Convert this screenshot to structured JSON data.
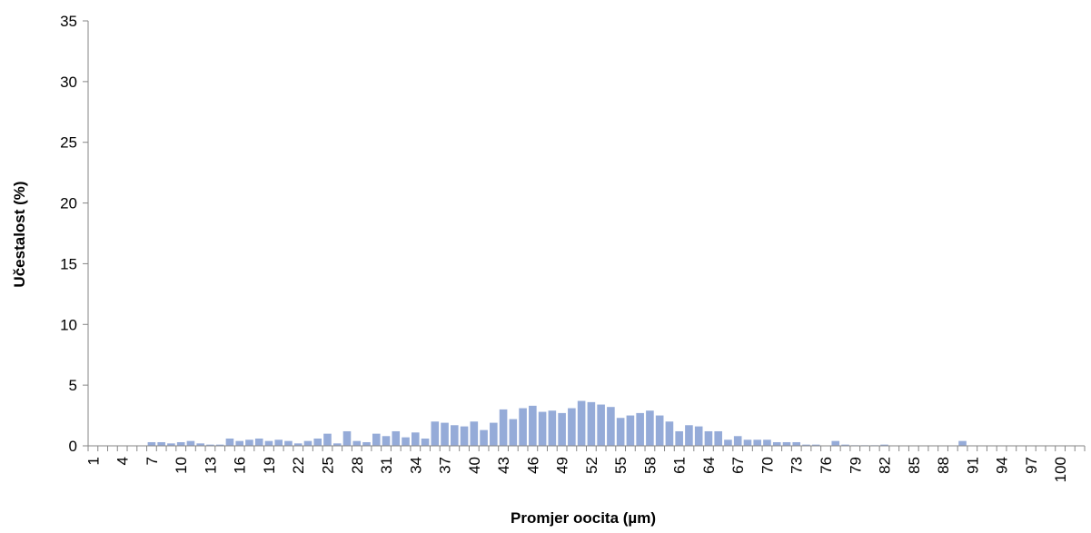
{
  "chart_data": {
    "type": "bar",
    "title": "",
    "xlabel": "Promjer oocita (µm)",
    "ylabel": "Učestalost (%)",
    "ylim": [
      0,
      35
    ],
    "yticks": [
      0,
      5,
      10,
      15,
      20,
      25,
      30,
      35
    ],
    "x_tick_labels": [
      "1",
      "4",
      "7",
      "10",
      "13",
      "16",
      "19",
      "22",
      "25",
      "28",
      "31",
      "34",
      "37",
      "40",
      "43",
      "46",
      "49",
      "52",
      "55",
      "58",
      "61",
      "64",
      "67",
      "70",
      "73",
      "76",
      "79",
      "82",
      "85",
      "88",
      "91",
      "94",
      "97",
      "100"
    ],
    "categories": [
      1,
      2,
      3,
      4,
      5,
      6,
      7,
      8,
      9,
      10,
      11,
      12,
      13,
      14,
      15,
      16,
      17,
      18,
      19,
      20,
      21,
      22,
      23,
      24,
      25,
      26,
      27,
      28,
      29,
      30,
      31,
      32,
      33,
      34,
      35,
      36,
      37,
      38,
      39,
      40,
      41,
      42,
      43,
      44,
      45,
      46,
      47,
      48,
      49,
      50,
      51,
      52,
      53,
      54,
      55,
      56,
      57,
      58,
      59,
      60,
      61,
      62,
      63,
      64,
      65,
      66,
      67,
      68,
      69,
      70,
      71,
      72,
      73,
      74,
      75,
      76,
      77,
      78,
      79,
      80,
      81,
      82,
      83,
      84,
      85,
      86,
      87,
      88,
      89,
      90,
      91,
      92,
      93,
      94,
      95,
      96,
      97,
      98,
      99,
      100,
      101,
      102
    ],
    "values": [
      0,
      0,
      0,
      0,
      0,
      0,
      0.3,
      0.3,
      0.2,
      0.3,
      0.4,
      0.2,
      0.1,
      0.1,
      0.6,
      0.4,
      0.5,
      0.6,
      0.4,
      0.5,
      0.4,
      0.2,
      0.4,
      0.6,
      1.0,
      0.2,
      1.2,
      0.4,
      0.3,
      1.0,
      0.8,
      1.2,
      0.7,
      1.1,
      0.6,
      2.0,
      1.9,
      1.7,
      1.6,
      2.0,
      1.3,
      1.9,
      3.0,
      2.2,
      3.1,
      3.3,
      2.8,
      2.9,
      2.7,
      3.1,
      3.7,
      3.6,
      3.4,
      3.2,
      2.3,
      2.5,
      2.7,
      2.9,
      2.5,
      2.0,
      1.2,
      1.7,
      1.6,
      1.2,
      1.2,
      0.5,
      0.8,
      0.5,
      0.5,
      0.5,
      0.3,
      0.3,
      0.3,
      0.1,
      0.1,
      0,
      0.4,
      0.1,
      0.05,
      0.05,
      0.05,
      0.1,
      0,
      0,
      0,
      0,
      0,
      0,
      0,
      0.4,
      0,
      0,
      0,
      0,
      0,
      0,
      0,
      0,
      0,
      0,
      0,
      0
    ],
    "bar_color": "#95ABD8",
    "grid": false,
    "legend": "none"
  }
}
